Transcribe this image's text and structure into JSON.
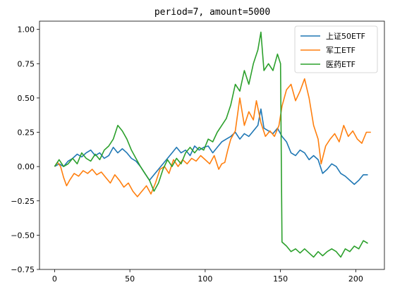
{
  "chart_data": {
    "type": "line",
    "title": "period=7, amount=5000",
    "xlabel": "",
    "ylabel": "",
    "xlim": [
      -10,
      219
    ],
    "ylim": [
      -0.75,
      1.06
    ],
    "xticks": [
      0,
      50,
      100,
      150,
      200
    ],
    "yticks": [
      -0.75,
      -0.5,
      -0.25,
      0.0,
      0.25,
      0.5,
      0.75,
      1.0
    ],
    "xtick_labels": [
      "0",
      "50",
      "100",
      "150",
      "200"
    ],
    "ytick_labels": [
      "−0.75",
      "−0.50",
      "−0.25",
      "0.00",
      "0.25",
      "0.50",
      "0.75",
      "1.00"
    ],
    "grid": false,
    "legend_position": "top-right",
    "series": [
      {
        "name": "上证50ETF",
        "color": "#1f77b4",
        "points": [
          [
            0,
            0
          ],
          [
            3,
            0.02
          ],
          [
            6,
            0.0
          ],
          [
            9,
            0.04
          ],
          [
            12,
            0.06
          ],
          [
            15,
            0.09
          ],
          [
            18,
            0.07
          ],
          [
            21,
            0.1
          ],
          [
            24,
            0.12
          ],
          [
            27,
            0.08
          ],
          [
            30,
            0.1
          ],
          [
            33,
            0.06
          ],
          [
            36,
            0.08
          ],
          [
            39,
            0.14
          ],
          [
            42,
            0.1
          ],
          [
            45,
            0.13
          ],
          [
            48,
            0.1
          ],
          [
            51,
            0.06
          ],
          [
            54,
            0.04
          ],
          [
            57,
            0.0
          ],
          [
            60,
            -0.05
          ],
          [
            63,
            -0.1
          ],
          [
            66,
            -0.06
          ],
          [
            69,
            -0.02
          ],
          [
            72,
            0.02
          ],
          [
            75,
            0.06
          ],
          [
            78,
            0.1
          ],
          [
            81,
            0.14
          ],
          [
            84,
            0.1
          ],
          [
            87,
            0.12
          ],
          [
            90,
            0.08
          ],
          [
            93,
            0.15
          ],
          [
            96,
            0.12
          ],
          [
            99,
            0.14
          ],
          [
            102,
            0.15
          ],
          [
            105,
            0.1
          ],
          [
            108,
            0.14
          ],
          [
            111,
            0.18
          ],
          [
            114,
            0.2
          ],
          [
            117,
            0.22
          ],
          [
            120,
            0.25
          ],
          [
            123,
            0.2
          ],
          [
            126,
            0.24
          ],
          [
            129,
            0.22
          ],
          [
            132,
            0.26
          ],
          [
            135,
            0.3
          ],
          [
            137,
            0.42
          ],
          [
            139,
            0.28
          ],
          [
            142,
            0.26
          ],
          [
            145,
            0.24
          ],
          [
            148,
            0.28
          ],
          [
            151,
            0.22
          ],
          [
            154,
            0.18
          ],
          [
            157,
            0.1
          ],
          [
            160,
            0.08
          ],
          [
            163,
            0.12
          ],
          [
            166,
            0.1
          ],
          [
            169,
            0.05
          ],
          [
            172,
            0.08
          ],
          [
            175,
            0.05
          ],
          [
            178,
            -0.05
          ],
          [
            181,
            -0.02
          ],
          [
            184,
            0.02
          ],
          [
            187,
            0.0
          ],
          [
            190,
            -0.05
          ],
          [
            193,
            -0.07
          ],
          [
            196,
            -0.1
          ],
          [
            199,
            -0.13
          ],
          [
            202,
            -0.1
          ],
          [
            205,
            -0.06
          ],
          [
            208,
            -0.06
          ]
        ]
      },
      {
        "name": "军工ETF",
        "color": "#ff7f0e",
        "points": [
          [
            0,
            0
          ],
          [
            2,
            0.03
          ],
          [
            4,
            0.0
          ],
          [
            6,
            -0.08
          ],
          [
            8,
            -0.14
          ],
          [
            10,
            -0.1
          ],
          [
            13,
            -0.05
          ],
          [
            16,
            -0.07
          ],
          [
            19,
            -0.03
          ],
          [
            22,
            -0.05
          ],
          [
            25,
            -0.02
          ],
          [
            28,
            -0.06
          ],
          [
            31,
            -0.04
          ],
          [
            34,
            -0.08
          ],
          [
            37,
            -0.12
          ],
          [
            40,
            -0.06
          ],
          [
            43,
            -0.1
          ],
          [
            46,
            -0.15
          ],
          [
            49,
            -0.12
          ],
          [
            52,
            -0.18
          ],
          [
            55,
            -0.22
          ],
          [
            58,
            -0.18
          ],
          [
            61,
            -0.14
          ],
          [
            64,
            -0.2
          ],
          [
            67,
            -0.12
          ],
          [
            70,
            -0.02
          ],
          [
            73,
            0.0
          ],
          [
            76,
            -0.05
          ],
          [
            79,
            0.05
          ],
          [
            82,
            0.0
          ],
          [
            85,
            0.05
          ],
          [
            88,
            0.02
          ],
          [
            91,
            0.06
          ],
          [
            94,
            0.04
          ],
          [
            97,
            0.08
          ],
          [
            100,
            0.05
          ],
          [
            103,
            0.02
          ],
          [
            106,
            0.08
          ],
          [
            109,
            -0.02
          ],
          [
            111,
            0.02
          ],
          [
            113,
            0.03
          ],
          [
            115,
            0.12
          ],
          [
            117,
            0.2
          ],
          [
            120,
            0.26
          ],
          [
            123,
            0.5
          ],
          [
            126,
            0.3
          ],
          [
            129,
            0.4
          ],
          [
            132,
            0.34
          ],
          [
            134,
            0.48
          ],
          [
            137,
            0.32
          ],
          [
            140,
            0.22
          ],
          [
            143,
            0.26
          ],
          [
            146,
            0.22
          ],
          [
            149,
            0.3
          ],
          [
            151,
            0.44
          ],
          [
            154,
            0.56
          ],
          [
            157,
            0.6
          ],
          [
            160,
            0.48
          ],
          [
            163,
            0.55
          ],
          [
            166,
            0.64
          ],
          [
            169,
            0.5
          ],
          [
            172,
            0.3
          ],
          [
            175,
            0.2
          ],
          [
            177,
            0.02
          ],
          [
            180,
            0.15
          ],
          [
            183,
            0.2
          ],
          [
            186,
            0.24
          ],
          [
            189,
            0.18
          ],
          [
            192,
            0.3
          ],
          [
            195,
            0.22
          ],
          [
            198,
            0.26
          ],
          [
            201,
            0.2
          ],
          [
            204,
            0.17
          ],
          [
            207,
            0.25
          ],
          [
            210,
            0.25
          ]
        ]
      },
      {
        "name": "医药ETF",
        "color": "#2ca02c",
        "points": [
          [
            0,
            0
          ],
          [
            3,
            0.05
          ],
          [
            6,
            0.0
          ],
          [
            9,
            0.02
          ],
          [
            12,
            0.06
          ],
          [
            15,
            0.02
          ],
          [
            18,
            0.1
          ],
          [
            21,
            0.06
          ],
          [
            24,
            0.04
          ],
          [
            27,
            0.09
          ],
          [
            30,
            0.05
          ],
          [
            33,
            0.12
          ],
          [
            36,
            0.15
          ],
          [
            39,
            0.2
          ],
          [
            42,
            0.3
          ],
          [
            45,
            0.26
          ],
          [
            48,
            0.2
          ],
          [
            51,
            0.12
          ],
          [
            54,
            0.06
          ],
          [
            57,
            0.0
          ],
          [
            60,
            -0.05
          ],
          [
            63,
            -0.1
          ],
          [
            66,
            -0.18
          ],
          [
            69,
            -0.12
          ],
          [
            72,
            -0.02
          ],
          [
            75,
            0.05
          ],
          [
            78,
            0.0
          ],
          [
            81,
            0.06
          ],
          [
            84,
            0.02
          ],
          [
            87,
            0.1
          ],
          [
            90,
            0.14
          ],
          [
            93,
            0.1
          ],
          [
            96,
            0.14
          ],
          [
            99,
            0.12
          ],
          [
            102,
            0.2
          ],
          [
            105,
            0.18
          ],
          [
            108,
            0.25
          ],
          [
            111,
            0.3
          ],
          [
            114,
            0.35
          ],
          [
            117,
            0.45
          ],
          [
            120,
            0.6
          ],
          [
            123,
            0.55
          ],
          [
            126,
            0.7
          ],
          [
            129,
            0.6
          ],
          [
            132,
            0.75
          ],
          [
            135,
            0.85
          ],
          [
            137,
            0.98
          ],
          [
            139,
            0.7
          ],
          [
            142,
            0.75
          ],
          [
            145,
            0.7
          ],
          [
            148,
            0.82
          ],
          [
            150,
            0.75
          ],
          [
            151,
            -0.55
          ],
          [
            154,
            -0.58
          ],
          [
            157,
            -0.62
          ],
          [
            160,
            -0.6
          ],
          [
            163,
            -0.63
          ],
          [
            166,
            -0.6
          ],
          [
            169,
            -0.63
          ],
          [
            172,
            -0.66
          ],
          [
            175,
            -0.62
          ],
          [
            178,
            -0.65
          ],
          [
            181,
            -0.62
          ],
          [
            184,
            -0.6
          ],
          [
            187,
            -0.62
          ],
          [
            190,
            -0.66
          ],
          [
            193,
            -0.6
          ],
          [
            196,
            -0.62
          ],
          [
            199,
            -0.58
          ],
          [
            202,
            -0.6
          ],
          [
            205,
            -0.54
          ],
          [
            208,
            -0.56
          ]
        ]
      }
    ]
  }
}
